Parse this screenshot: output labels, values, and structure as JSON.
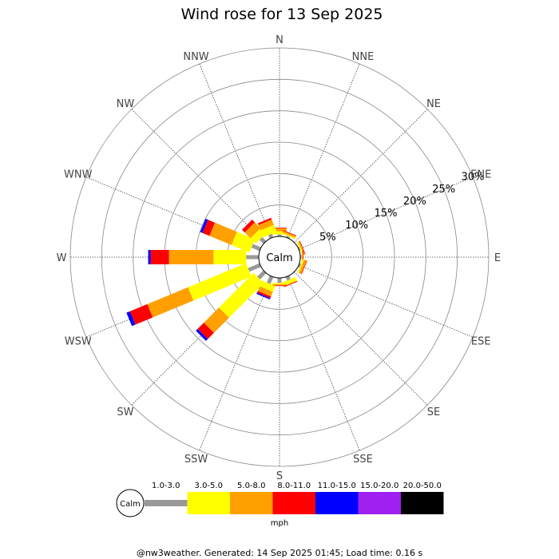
{
  "chart_data": {
    "type": "windrose",
    "title": "Wind rose for 13 Sep 2025",
    "directions": [
      "N",
      "NNE",
      "NE",
      "ENE",
      "E",
      "ESE",
      "SE",
      "SSE",
      "S",
      "SSW",
      "SW",
      "WSW",
      "W",
      "WNW",
      "NW",
      "NNW"
    ],
    "rings": [
      5,
      10,
      15,
      20,
      25,
      30
    ],
    "ring_labels": [
      "5%",
      "10%",
      "15%",
      "20%",
      "25%",
      "30%"
    ],
    "rmax": 30,
    "calm_label": "Calm",
    "unit": "mph",
    "speed_bins": [
      {
        "label": "1.0-3.0",
        "color": "#999999"
      },
      {
        "label": "3.0-5.0",
        "color": "#ffff00"
      },
      {
        "label": "5.0-8.0",
        "color": "#ffa000"
      },
      {
        "label": "8.0-11.0",
        "color": "#ff0000"
      },
      {
        "label": "11.0-15.0",
        "color": "#0000ff"
      },
      {
        "label": "15.0-20.0",
        "color": "#a020f0"
      },
      {
        "label": "20.0-50.0",
        "color": "#000000"
      }
    ],
    "cumulative_by_direction": {
      "N": [
        0.3,
        0.8,
        1.3,
        1.4
      ],
      "NNE": [
        0.3,
        0.5,
        0.8,
        0.9
      ],
      "ENE": [
        0.2,
        0.4,
        0.6,
        0.7
      ],
      "E": [
        0.2,
        0.3,
        0.4,
        0.5
      ],
      "ESE": [
        0.3,
        0.5,
        0.9,
        1.0
      ],
      "SSE": [
        0.6,
        1.2,
        1.3,
        1.4
      ],
      "S": [
        0.8,
        1.0,
        1.2,
        1.3
      ],
      "SSW": [
        1.2,
        2.2,
        3.0,
        3.3,
        3.5
      ],
      "SW": [
        1.4,
        9.2,
        12.6,
        14.0,
        14.4
      ],
      "WSW": [
        2.0,
        12.0,
        19.0,
        22.0,
        22.6
      ],
      "W": [
        2.0,
        7.2,
        14.3,
        17.2,
        17.6
      ],
      "WNW": [
        1.4,
        4.5,
        8.3,
        9.5,
        9.9
      ],
      "NW": [
        0.9,
        2.1,
        3.4,
        4.0
      ],
      "NNW": [
        0.6,
        1.8,
        2.7,
        3.0
      ]
    }
  },
  "footer": "@nw3weather. Generated: 14 Sep 2025 01:45; Load time: 0.16 s"
}
